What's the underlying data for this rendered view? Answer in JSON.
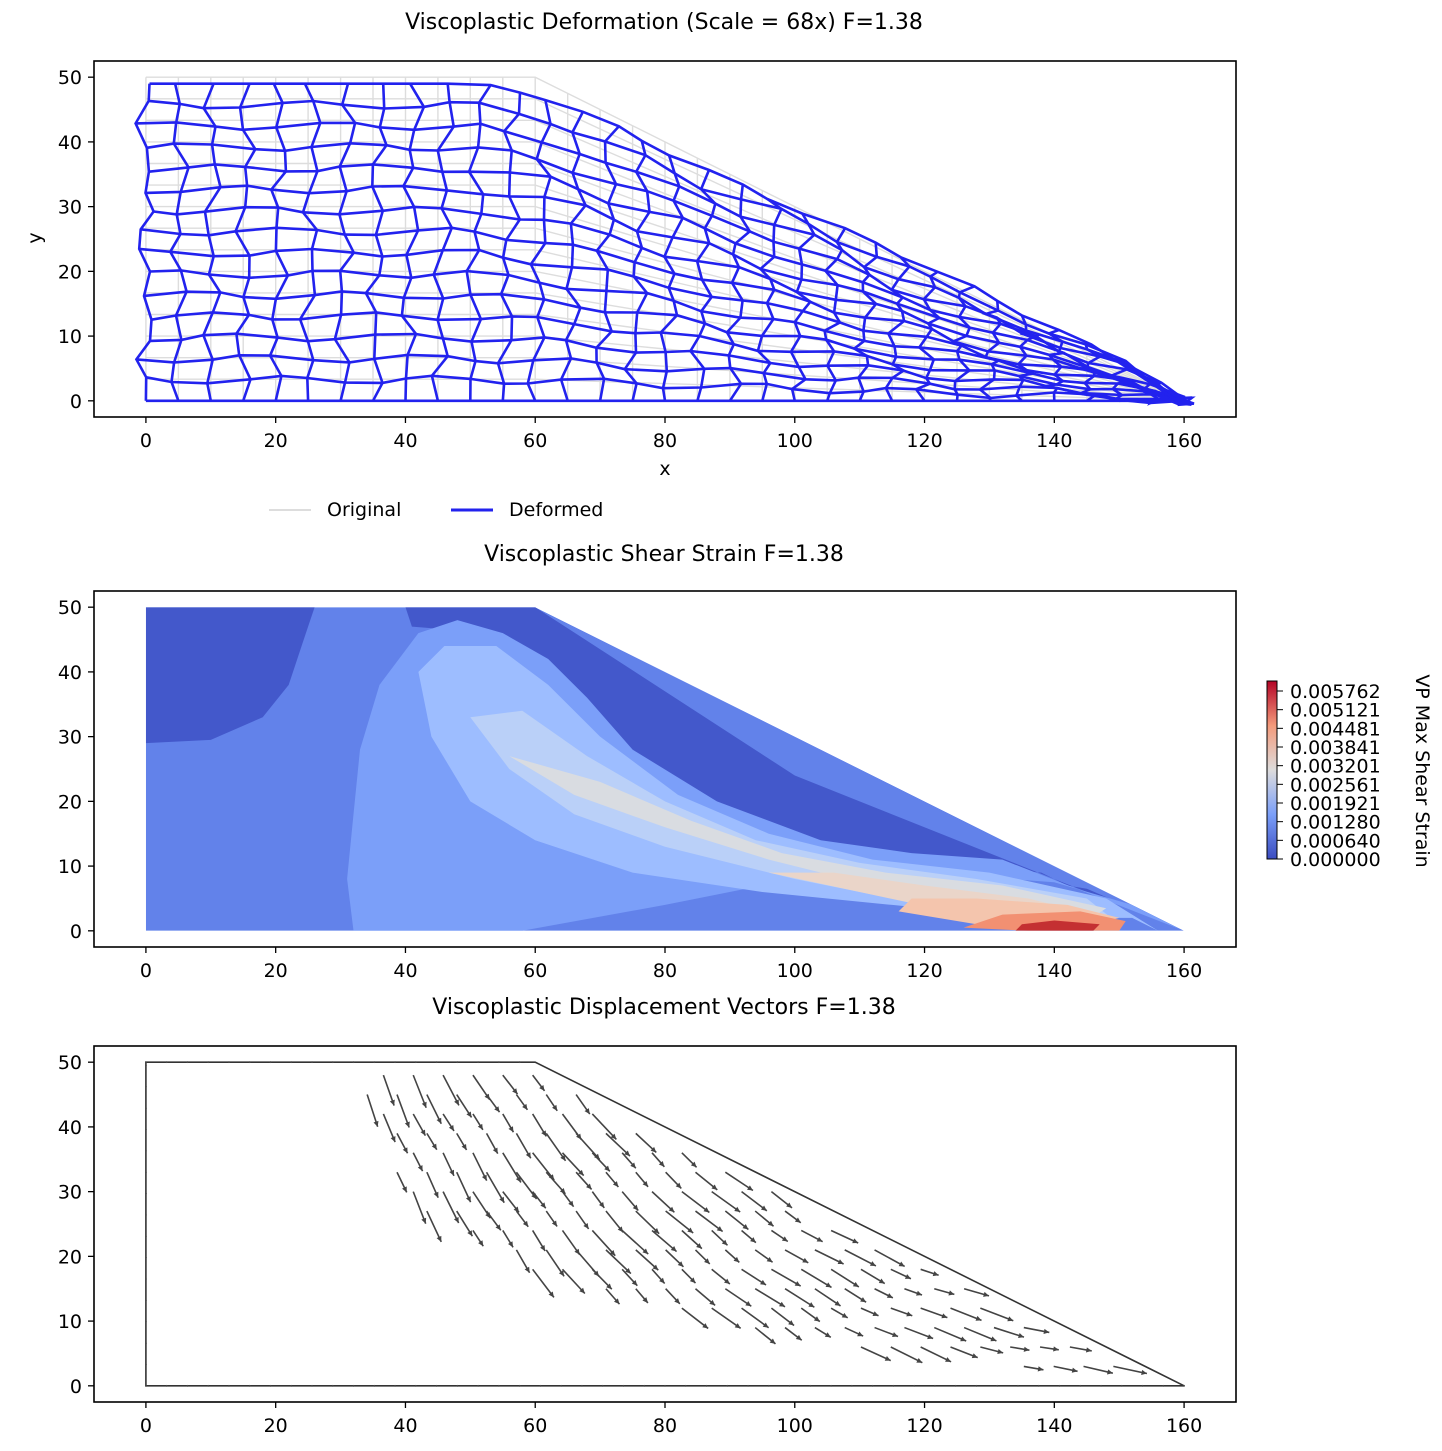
{
  "chart_data": [
    {
      "type": "line",
      "title": "Viscoplastic Deformation (Scale = 68x)  F=1.38",
      "xlabel": "x",
      "ylabel": "y",
      "xlim": [
        -8,
        168
      ],
      "ylim": [
        -2.5,
        52.5
      ],
      "xticks": [
        0,
        20,
        40,
        60,
        80,
        100,
        120,
        140,
        160
      ],
      "yticks": [
        0,
        10,
        20,
        30,
        40,
        50
      ],
      "grid": false,
      "legend_position": "below",
      "series": [
        {
          "name": "Original",
          "color": "#dddddd",
          "boundary": [
            [
              0,
              0
            ],
            [
              160,
              0
            ],
            [
              60,
              50
            ],
            [
              0,
              50
            ]
          ],
          "mesh_columns": 32,
          "mesh_rows": 15
        },
        {
          "name": "Deformed",
          "color": "#2222ee",
          "boundary": [
            [
              0,
              0
            ],
            [
              160,
              0
            ],
            [
              151,
              6
            ],
            [
              62,
              46
            ],
            [
              49,
              49
            ],
            [
              0,
              49
            ]
          ],
          "mesh_columns": 32,
          "mesh_rows": 15
        }
      ]
    },
    {
      "type": "heatmap",
      "title": "Viscoplastic Shear Strain  F=1.38",
      "xlim": [
        -8,
        168
      ],
      "ylim": [
        -2.5,
        52.5
      ],
      "xticks": [
        0,
        20,
        40,
        60,
        80,
        100,
        120,
        140,
        160
      ],
      "yticks": [
        0,
        10,
        20,
        30,
        40,
        50
      ],
      "domain": [
        [
          0,
          0
        ],
        [
          160,
          0
        ],
        [
          60,
          50
        ],
        [
          0,
          50
        ]
      ],
      "colorbar": {
        "label": "VP Max Shear Strain",
        "ticks": [
          "0.005762",
          "0.005121",
          "0.004481",
          "0.003841",
          "0.003201",
          "0.002561",
          "0.001921",
          "0.001280",
          "0.000640",
          "0.000000"
        ],
        "min": 0,
        "max": 0.005762,
        "colormap": "coolwarm"
      },
      "regions": [
        {
          "value": 0.00025,
          "color": "#4358cb"
        },
        {
          "value": 0.0009,
          "color": "#6282ea"
        },
        {
          "value": 0.0015,
          "color": "#7b9ff9"
        },
        {
          "value": 0.0021,
          "color": "#9dbdff"
        },
        {
          "value": 0.0027,
          "color": "#bad0f8"
        },
        {
          "value": 0.0033,
          "color": "#d9dce1"
        },
        {
          "value": 0.0037,
          "color": "#ead5c9"
        },
        {
          "value": 0.0041,
          "color": "#f4c5ad"
        },
        {
          "value": 0.0047,
          "color": "#f29072"
        },
        {
          "value": 0.0055,
          "color": "#c43032"
        }
      ]
    },
    {
      "type": "scatter",
      "title": "Viscoplastic Displacement Vectors  F=1.38",
      "xlim": [
        -8,
        168
      ],
      "ylim": [
        -2.5,
        52.5
      ],
      "xticks": [
        0,
        20,
        40,
        60,
        80,
        100,
        120,
        140,
        160
      ],
      "yticks": [
        0,
        10,
        20,
        30,
        40,
        50
      ],
      "outline": [
        [
          0,
          0
        ],
        [
          160,
          0
        ],
        [
          60,
          50
        ],
        [
          0,
          50
        ]
      ],
      "arrow_color": "#444444"
    }
  ]
}
